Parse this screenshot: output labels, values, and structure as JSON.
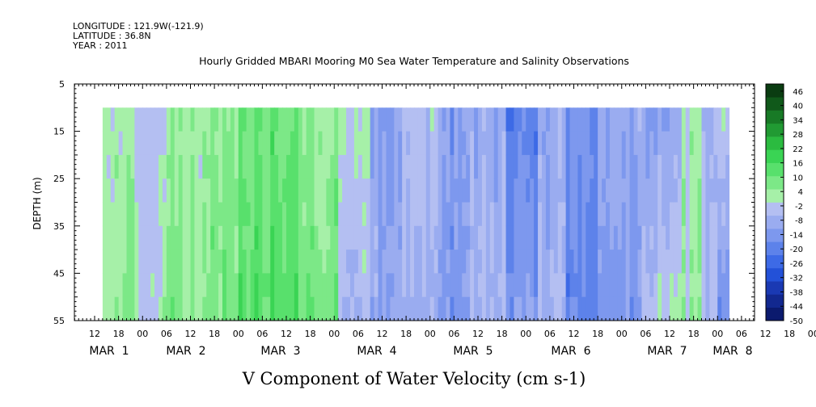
{
  "chart_data": {
    "type": "heatmap",
    "title": "Hourly Gridded MBARI Mooring M0 Sea Water Temperature and Salinity Observations",
    "header_lines": [
      "LONGITUDE : 121.9W(-121.9)",
      "LATITUDE : 36.8N",
      "YEAR : 2011"
    ],
    "xlabel": "V Component of Water Velocity (cm s-1)",
    "ylabel": "DEPTH (m)",
    "y_ticks": [
      "5",
      "15",
      "25",
      "35",
      "45",
      "55"
    ],
    "ylim": [
      5,
      55
    ],
    "x_hour_ticks": [
      "12",
      "18",
      "00",
      "06",
      "12",
      "18",
      "00",
      "06",
      "12",
      "18",
      "00",
      "06",
      "12",
      "18",
      "00",
      "06",
      "12",
      "18",
      "00",
      "06",
      "12",
      "18",
      "00",
      "06",
      "12",
      "18",
      "00",
      "06",
      "12",
      "18",
      "00",
      "06"
    ],
    "x_day_labels": [
      "MAR  1",
      "MAR  2",
      "MAR  3",
      "MAR  4",
      "MAR  5",
      "MAR  6",
      "MAR  7",
      "MAR  8"
    ],
    "data_range": {
      "time_start": "2011-03-01 14:00",
      "time_end": "2011-03-08 03:00",
      "depth_top": 10,
      "depth_bottom": 55
    },
    "colorbar": {
      "labels": [
        "46",
        "40",
        "34",
        "28",
        "22",
        "16",
        "10",
        "4",
        "-2",
        "-8",
        "-14",
        "-20",
        "-26",
        "-32",
        "-38",
        "-44",
        "-50"
      ],
      "min": -50,
      "max": 49,
      "colors": [
        "#0b1a6e",
        "#12288f",
        "#1a39b3",
        "#2351d8",
        "#3d6ae6",
        "#5d82ea",
        "#7d98ee",
        "#9aacf0",
        "#b4bff2",
        "#a6f0a8",
        "#7ce887",
        "#58e06c",
        "#3ad454",
        "#2bbb40",
        "#219a33",
        "#187a26",
        "#10591a",
        "#0a3c11"
      ],
      "value_stops": [
        -50,
        -44,
        -38,
        -32,
        -26,
        -20,
        -14,
        -8,
        -2,
        4,
        10,
        16,
        22,
        28,
        34,
        40,
        46,
        49
      ]
    },
    "bands": [
      {
        "day_start": 0.58,
        "day_end": 0.9,
        "value_top": 6,
        "value_bottom": 9
      },
      {
        "day_start": 0.9,
        "day_end": 1.2,
        "value_top": 3,
        "value_bottom": 5
      },
      {
        "day_start": 1.2,
        "day_end": 1.6,
        "value_top": 7,
        "value_bottom": 12
      },
      {
        "day_start": 1.6,
        "day_end": 2.0,
        "value_top": 10,
        "value_bottom": 14
      },
      {
        "day_start": 2.0,
        "day_end": 2.6,
        "value_top": 16,
        "value_bottom": 20
      },
      {
        "day_start": 2.6,
        "day_end": 3.0,
        "value_top": 10,
        "value_bottom": 14
      },
      {
        "day_start": 3.0,
        "day_end": 3.35,
        "value_top": 6,
        "value_bottom": -2
      },
      {
        "day_start": 3.35,
        "day_end": 3.7,
        "value_top": -8,
        "value_bottom": -5
      },
      {
        "day_start": 3.7,
        "day_end": 4.1,
        "value_top": 0,
        "value_bottom": -6
      },
      {
        "day_start": 4.1,
        "day_end": 4.4,
        "value_top": -10,
        "value_bottom": -12
      },
      {
        "day_start": 4.4,
        "day_end": 4.75,
        "value_top": -6,
        "value_bottom": -3
      },
      {
        "day_start": 4.75,
        "day_end": 5.1,
        "value_top": -18,
        "value_bottom": -10
      },
      {
        "day_start": 5.1,
        "day_end": 5.4,
        "value_top": -6,
        "value_bottom": -2
      },
      {
        "day_start": 5.4,
        "day_end": 5.75,
        "value_top": -12,
        "value_bottom": -16
      },
      {
        "day_start": 5.75,
        "day_end": 6.2,
        "value_top": -4,
        "value_bottom": -10
      },
      {
        "day_start": 6.2,
        "day_end": 6.6,
        "value_top": -8,
        "value_bottom": 4
      },
      {
        "day_start": 6.6,
        "day_end": 6.8,
        "value_top": 6,
        "value_bottom": 8
      },
      {
        "day_start": 6.8,
        "day_end": 7.0,
        "value_top": -6,
        "value_bottom": -2
      },
      {
        "day_start": 7.0,
        "day_end": 7.13,
        "value_top": 4,
        "value_bottom": -14
      }
    ]
  }
}
